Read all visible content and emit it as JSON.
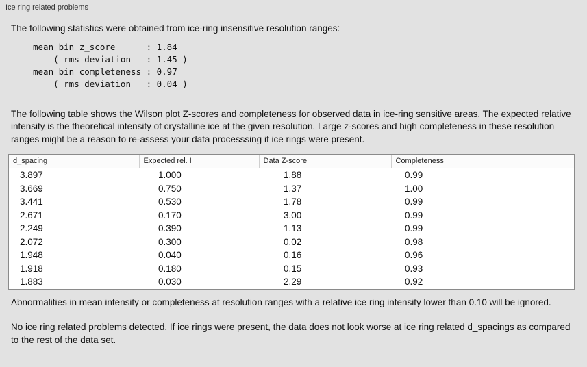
{
  "panel": {
    "title": "Ice ring related problems"
  },
  "intro": "The following statistics were obtained from ice-ring insensitive resolution ranges:",
  "stats_block": "mean bin z_score      : 1.84\n    ( rms deviation   : 1.45 )\nmean bin completeness : 0.97\n    ( rms deviation   : 0.04 )",
  "table_intro": "The following table shows the Wilson plot Z-scores and completeness for observed data in ice-ring sensitive areas. The expected relative intensity is the theoretical intensity of crystalline ice at the given resolution. Large z-scores and high completeness in these resolution ranges might be a reason to re-assess your data processsing if ice rings were present.",
  "table": {
    "headers": [
      "d_spacing",
      "Expected rel. I",
      "Data Z-score",
      "Completeness"
    ],
    "rows": [
      [
        "3.897",
        "1.000",
        "1.88",
        "0.99"
      ],
      [
        "3.669",
        "0.750",
        "1.37",
        "1.00"
      ],
      [
        "3.441",
        "0.530",
        "1.78",
        "0.99"
      ],
      [
        "2.671",
        "0.170",
        "3.00",
        "0.99"
      ],
      [
        "2.249",
        "0.390",
        "1.13",
        "0.99"
      ],
      [
        "2.072",
        "0.300",
        "0.02",
        "0.98"
      ],
      [
        "1.948",
        "0.040",
        "0.16",
        "0.96"
      ],
      [
        "1.918",
        "0.180",
        "0.15",
        "0.93"
      ],
      [
        "1.883",
        "0.030",
        "2.29",
        "0.92"
      ]
    ]
  },
  "note_ignore": "Abnormalities in mean intensity or completeness at resolution ranges with a relative ice ring intensity lower than 0.10 will be ignored.",
  "conclusion": "No ice ring related problems detected. If ice rings were present, the data does not look worse at ice ring related d_spacings as compared to the rest of the data set.",
  "colors": {
    "background": "#e2e2e2",
    "table_background": "#ffffff",
    "table_border": "#8a8a8a"
  }
}
